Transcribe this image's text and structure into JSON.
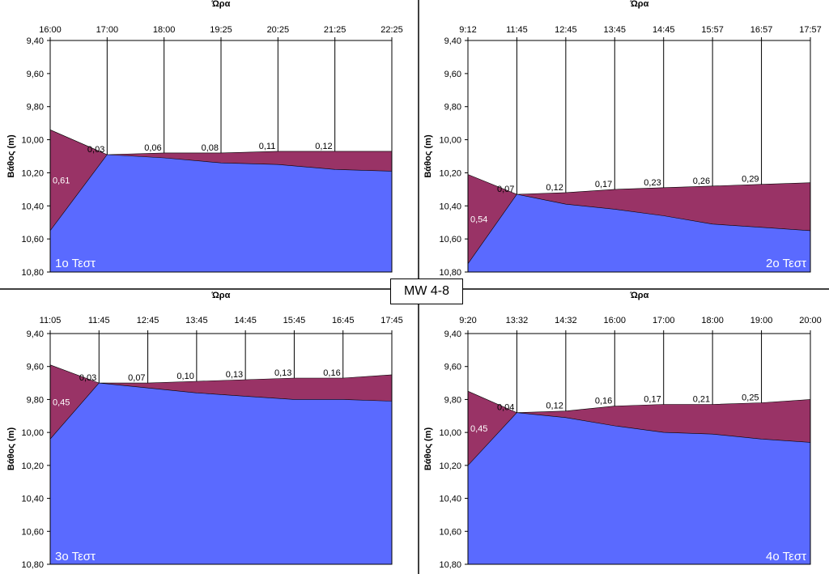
{
  "page_label": "MW 4-8",
  "colors": {
    "water": "#5a6aff",
    "drawdown": "#993366",
    "axis": "#000000"
  },
  "chart_data": [
    {
      "type": "area",
      "title": "1ο Τεστ",
      "xlabel": "Ώρα",
      "ylabel": "Βάθος (m)",
      "x": [
        "16:00",
        "17:00",
        "18:00",
        "19:25",
        "20:25",
        "21:25",
        "22:25"
      ],
      "y_ticks": [
        "9,40",
        "9,60",
        "9,80",
        "10,00",
        "10,20",
        "10,40",
        "10,60",
        "10,80"
      ],
      "ylim": [
        9.4,
        10.8
      ],
      "y_inverted": true,
      "series": [
        {
          "values": [
            10.55,
            10.09,
            10.11,
            10.14,
            10.15,
            10.18,
            10.19
          ]
        },
        {
          "values": [
            9.94,
            10.09,
            10.08,
            10.08,
            10.07,
            10.07,
            10.07
          ]
        }
      ],
      "annotations": [
        "0,61",
        "0,03",
        "0,06",
        "0,08",
        "0,11",
        "0,12"
      ]
    },
    {
      "type": "area",
      "title": "2ο Τεστ",
      "xlabel": "Ώρα",
      "ylabel": "Βάθος (m)",
      "x": [
        "9:12",
        "11:45",
        "12:45",
        "13:45",
        "14:45",
        "15:57",
        "16:57",
        "17:57"
      ],
      "y_ticks": [
        "9,40",
        "9,60",
        "9,80",
        "10,00",
        "10,20",
        "10,40",
        "10,60",
        "10,80"
      ],
      "ylim": [
        9.4,
        10.8
      ],
      "y_inverted": true,
      "series": [
        {
          "values": [
            10.75,
            10.33,
            10.39,
            10.42,
            10.46,
            10.51,
            10.53,
            10.55
          ]
        },
        {
          "values": [
            10.21,
            10.33,
            10.32,
            10.3,
            10.29,
            10.28,
            10.27,
            10.26
          ]
        }
      ],
      "annotations": [
        "0,54",
        "0,07",
        "0,12",
        "0,17",
        "0,23",
        "0,26",
        "0,29"
      ]
    },
    {
      "type": "area",
      "title": "3ο Τεστ",
      "xlabel": "Ώρα",
      "ylabel": "Βάθος (m)",
      "x": [
        "11:05",
        "11:45",
        "12:45",
        "13:45",
        "14:45",
        "15:45",
        "16:45",
        "17:45"
      ],
      "y_ticks": [
        "9,40",
        "9,60",
        "9,80",
        "10,00",
        "10,20",
        "10,40",
        "10,60",
        "10,80"
      ],
      "ylim": [
        9.4,
        10.8
      ],
      "y_inverted": true,
      "series": [
        {
          "values": [
            10.04,
            9.7,
            9.73,
            9.76,
            9.78,
            9.8,
            9.8,
            9.81
          ]
        },
        {
          "values": [
            9.59,
            9.7,
            9.7,
            9.69,
            9.68,
            9.67,
            9.67,
            9.65
          ]
        }
      ],
      "annotations": [
        "0,45",
        "0,03",
        "0,07",
        "0,10",
        "0,13",
        "0,13",
        "0,16"
      ]
    },
    {
      "type": "area",
      "title": "4ο Τεστ",
      "xlabel": "Ώρα",
      "ylabel": "Βάθος (m)",
      "x": [
        "9:20",
        "13:32",
        "14:32",
        "16:00",
        "17:00",
        "18:00",
        "19:00",
        "20:00"
      ],
      "y_ticks": [
        "9,40",
        "9,60",
        "9,80",
        "10,00",
        "10,20",
        "10,40",
        "10,60",
        "10,80"
      ],
      "ylim": [
        9.4,
        10.8
      ],
      "y_inverted": true,
      "series": [
        {
          "values": [
            10.2,
            9.88,
            9.91,
            9.96,
            10.0,
            10.01,
            10.04,
            10.06
          ]
        },
        {
          "values": [
            9.75,
            9.88,
            9.87,
            9.84,
            9.83,
            9.83,
            9.82,
            9.8
          ]
        }
      ],
      "annotations": [
        "0,45",
        "0,04",
        "0,12",
        "0,16",
        "0,17",
        "0,21",
        "0,25"
      ]
    }
  ]
}
